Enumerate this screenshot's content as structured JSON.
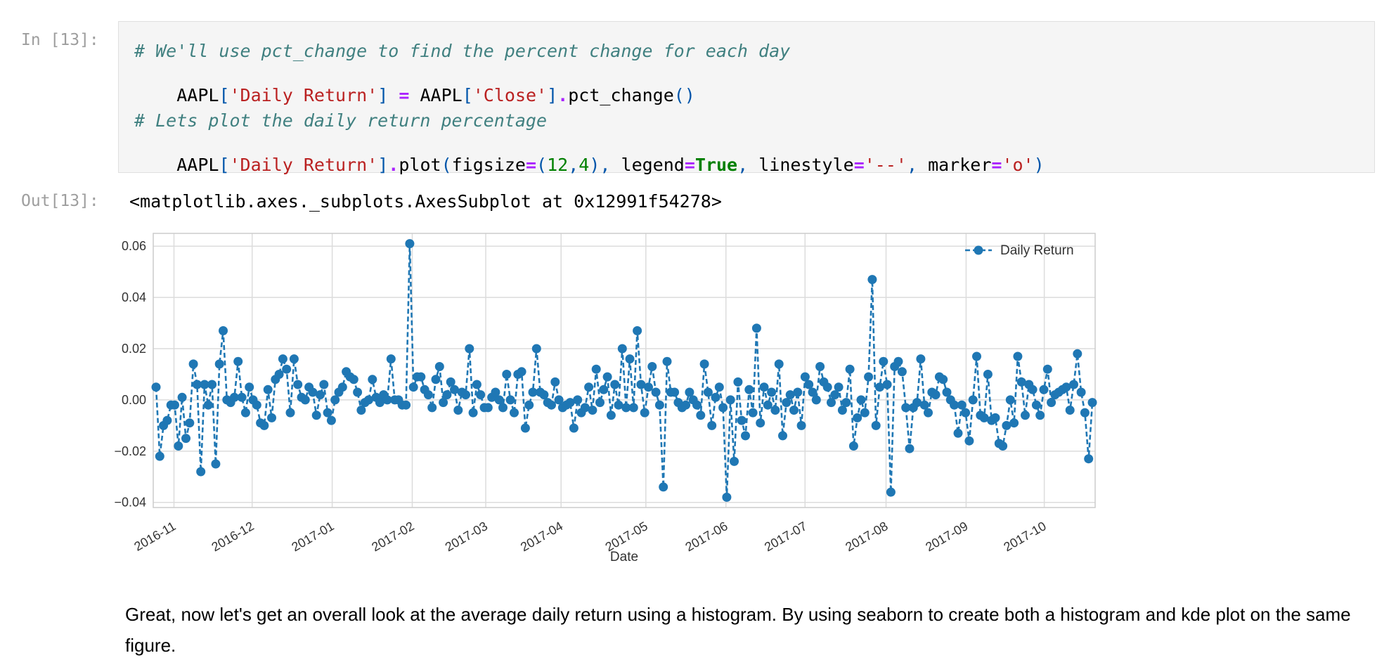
{
  "cell_in": {
    "prompt": "In [13]:",
    "code": {
      "comment1": "# We'll use pct_change to find the percent change for each day",
      "line2_parts": [
        "AAPL",
        "[",
        "'Daily Return'",
        "]",
        " ",
        "=",
        " ",
        "AAPL",
        "[",
        "'Close'",
        "]",
        ".",
        "pct_change",
        "()"
      ],
      "comment2": "# Lets plot the daily return percentage",
      "line4_parts": [
        "AAPL",
        "[",
        "'Daily Return'",
        "]",
        ".",
        "plot",
        "(",
        "figsize",
        "=",
        "(",
        "12",
        ",",
        "4",
        ")",
        ", ",
        "legend",
        "=",
        "True",
        ", ",
        "linestyle",
        "=",
        "'--'",
        ", ",
        "marker",
        "=",
        "'o'",
        ")"
      ]
    }
  },
  "cell_out": {
    "prompt": "Out[13]:",
    "text": "<matplotlib.axes._subplots.AxesSubplot at 0x12991f54278>"
  },
  "chart_data": {
    "type": "line",
    "xlabel": "Date",
    "ylabel": "",
    "ylim": [
      -0.042,
      0.065
    ],
    "yticks": [
      -0.04,
      -0.02,
      0.0,
      0.02,
      0.04,
      0.06
    ],
    "ytick_labels": [
      "−0.04",
      "−0.02",
      "0.00",
      "0.02",
      "0.04",
      "0.06"
    ],
    "xticks": [
      "2016-11",
      "2016-12",
      "2017-01",
      "2017-02",
      "2017-03",
      "2017-04",
      "2017-05",
      "2017-06",
      "2017-07",
      "2017-08",
      "2017-09",
      "2017-10"
    ],
    "grid": true,
    "legend_position": "top-right",
    "series": [
      {
        "name": "Daily Return",
        "color": "#1f77b4",
        "linestyle": "--",
        "marker": "o",
        "values": [
          0.005,
          -0.022,
          -0.01,
          -0.008,
          -0.002,
          -0.002,
          -0.018,
          0.001,
          -0.015,
          -0.009,
          0.014,
          0.006,
          -0.028,
          0.006,
          -0.002,
          0.006,
          -0.025,
          0.014,
          0.027,
          0.0,
          -0.001,
          0.001,
          0.015,
          0.001,
          -0.005,
          0.005,
          0.0,
          -0.002,
          -0.009,
          -0.01,
          0.004,
          -0.007,
          0.008,
          0.01,
          0.016,
          0.012,
          -0.005,
          0.016,
          0.006,
          0.001,
          0.0,
          0.005,
          0.003,
          -0.006,
          0.002,
          0.006,
          -0.005,
          -0.008,
          0.0,
          0.003,
          0.005,
          0.011,
          0.009,
          0.008,
          0.003,
          -0.004,
          -0.001,
          0.0,
          0.008,
          0.001,
          -0.001,
          0.002,
          0.0,
          0.016,
          0.0,
          0.0,
          -0.002,
          -0.002,
          0.061,
          0.005,
          0.009,
          0.009,
          0.004,
          0.002,
          -0.003,
          0.008,
          0.013,
          -0.001,
          0.002,
          0.007,
          0.004,
          -0.004,
          0.003,
          0.002,
          0.02,
          -0.005,
          0.006,
          0.002,
          -0.003,
          -0.003,
          0.001,
          0.003,
          0.0,
          -0.003,
          0.01,
          0.0,
          -0.005,
          0.01,
          0.011,
          -0.011,
          -0.002,
          0.003,
          0.02,
          0.003,
          0.002,
          -0.001,
          -0.002,
          0.007,
          0.0,
          -0.003,
          -0.002,
          -0.001,
          -0.011,
          0.0,
          -0.005,
          -0.003,
          0.005,
          -0.004,
          0.012,
          -0.001,
          0.004,
          0.009,
          -0.006,
          0.006,
          -0.002,
          0.02,
          -0.003,
          0.016,
          -0.003,
          0.027,
          0.006,
          -0.005,
          0.005,
          0.013,
          0.003,
          -0.002,
          -0.034,
          0.015,
          0.003,
          0.003,
          -0.001,
          -0.003,
          -0.002,
          0.003,
          0.0,
          -0.002,
          -0.006,
          0.014,
          0.003,
          -0.01,
          0.001,
          0.005,
          -0.003,
          -0.038,
          0.0,
          -0.024,
          0.007,
          -0.008,
          -0.014,
          0.004,
          -0.005,
          0.028,
          -0.009,
          0.005,
          -0.002,
          0.003,
          -0.004,
          0.014,
          -0.014,
          -0.001,
          0.002,
          -0.004,
          0.003,
          -0.01,
          0.009,
          0.006,
          0.003,
          0.0,
          0.013,
          0.007,
          0.005,
          -0.001,
          0.002,
          0.005,
          -0.004,
          -0.001,
          0.012,
          -0.018,
          -0.007,
          0.0,
          -0.005,
          0.009,
          0.047,
          -0.01,
          0.005,
          0.015,
          0.006,
          -0.036,
          0.013,
          0.015,
          0.011,
          -0.003,
          -0.019,
          -0.003,
          -0.001,
          0.016,
          -0.002,
          -0.005,
          0.003,
          0.002,
          0.009,
          0.008,
          0.003,
          0.0,
          -0.002,
          -0.013,
          -0.002,
          -0.005,
          -0.016,
          0.0,
          0.017,
          -0.006,
          -0.007,
          0.01,
          -0.008,
          -0.007,
          -0.017,
          -0.018,
          -0.01,
          0.0,
          -0.009,
          0.017,
          0.007,
          -0.006,
          0.006,
          0.004,
          -0.002,
          -0.006,
          0.004,
          0.012,
          -0.001,
          0.002,
          0.003,
          0.004,
          0.005,
          -0.004,
          0.006,
          0.018,
          0.003,
          -0.005,
          -0.023,
          -0.001
        ]
      }
    ]
  },
  "markdown": {
    "text": "Great, now let's get an overall look at the average daily return using a histogram. By using seaborn to create both a histogram and kde plot on the same figure."
  }
}
